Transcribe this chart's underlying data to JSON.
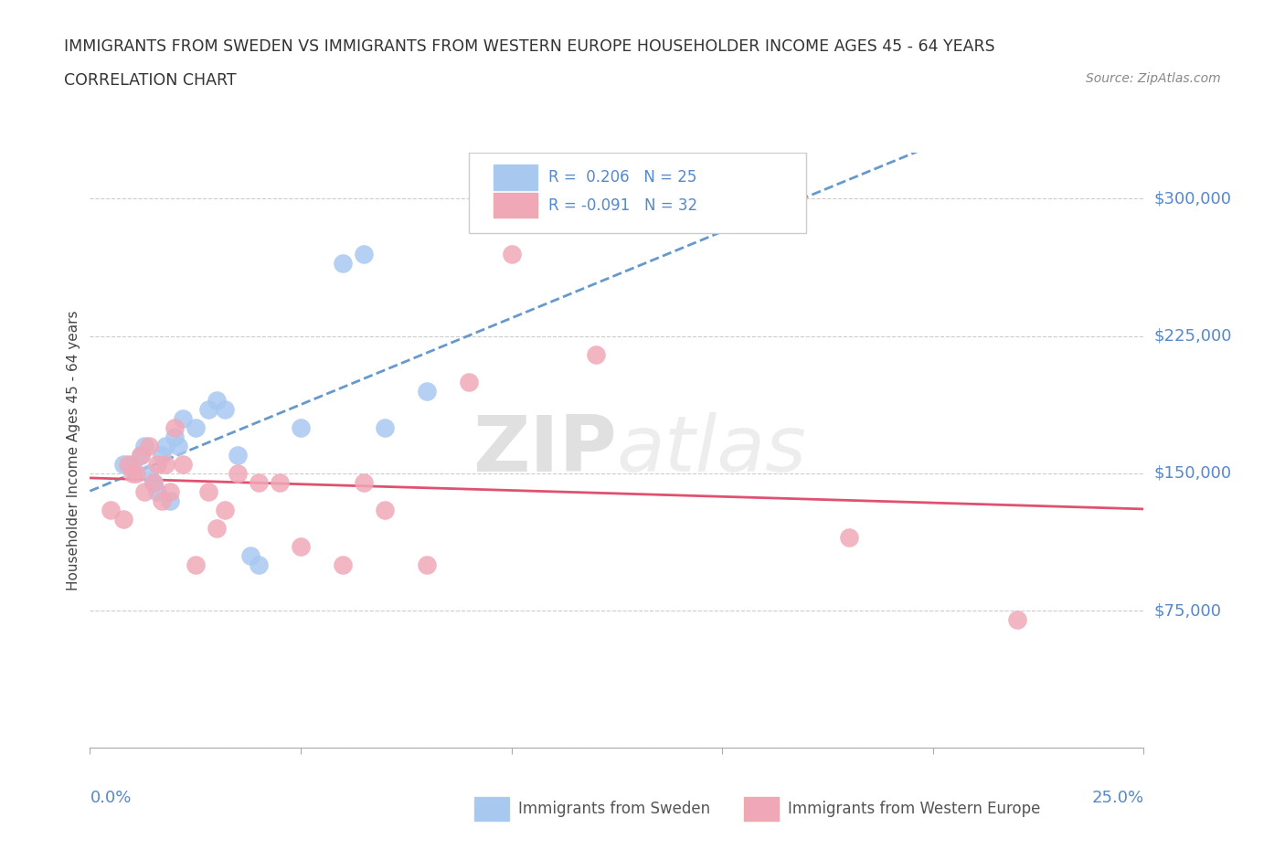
{
  "title_line1": "IMMIGRANTS FROM SWEDEN VS IMMIGRANTS FROM WESTERN EUROPE HOUSEHOLDER INCOME AGES 45 - 64 YEARS",
  "title_line2": "CORRELATION CHART",
  "source_text": "Source: ZipAtlas.com",
  "ylabel": "Householder Income Ages 45 - 64 years",
  "xlim": [
    0.0,
    0.25
  ],
  "ylim": [
    0,
    325000
  ],
  "yticks": [
    0,
    75000,
    150000,
    225000,
    300000
  ],
  "ytick_labels": [
    "",
    "$75,000",
    "$150,000",
    "$225,000",
    "$300,000"
  ],
  "watermark_top": "ZIP",
  "watermark_bot": "atlas",
  "sweden_color": "#a8c8f0",
  "western_color": "#f0a8b8",
  "sweden_line_color": "#6699cc",
  "western_line_color": "#e05070",
  "background_color": "#ffffff",
  "sweden_x": [
    0.008,
    0.01,
    0.012,
    0.013,
    0.014,
    0.015,
    0.016,
    0.017,
    0.018,
    0.019,
    0.02,
    0.021,
    0.022,
    0.025,
    0.028,
    0.03,
    0.032,
    0.035,
    0.038,
    0.04,
    0.05,
    0.06,
    0.065,
    0.07,
    0.08
  ],
  "sweden_y": [
    155000,
    155000,
    160000,
    165000,
    150000,
    145000,
    140000,
    160000,
    165000,
    135000,
    170000,
    165000,
    180000,
    175000,
    185000,
    190000,
    185000,
    160000,
    105000,
    100000,
    175000,
    265000,
    270000,
    175000,
    195000
  ],
  "western_x": [
    0.005,
    0.008,
    0.009,
    0.01,
    0.011,
    0.012,
    0.013,
    0.014,
    0.015,
    0.016,
    0.017,
    0.018,
    0.019,
    0.02,
    0.022,
    0.025,
    0.028,
    0.03,
    0.032,
    0.035,
    0.04,
    0.045,
    0.05,
    0.06,
    0.065,
    0.07,
    0.08,
    0.09,
    0.1,
    0.12,
    0.18,
    0.22
  ],
  "western_y": [
    130000,
    125000,
    155000,
    150000,
    150000,
    160000,
    140000,
    165000,
    145000,
    155000,
    135000,
    155000,
    140000,
    175000,
    155000,
    100000,
    140000,
    120000,
    130000,
    150000,
    145000,
    145000,
    110000,
    100000,
    145000,
    130000,
    100000,
    200000,
    270000,
    215000,
    115000,
    70000
  ]
}
